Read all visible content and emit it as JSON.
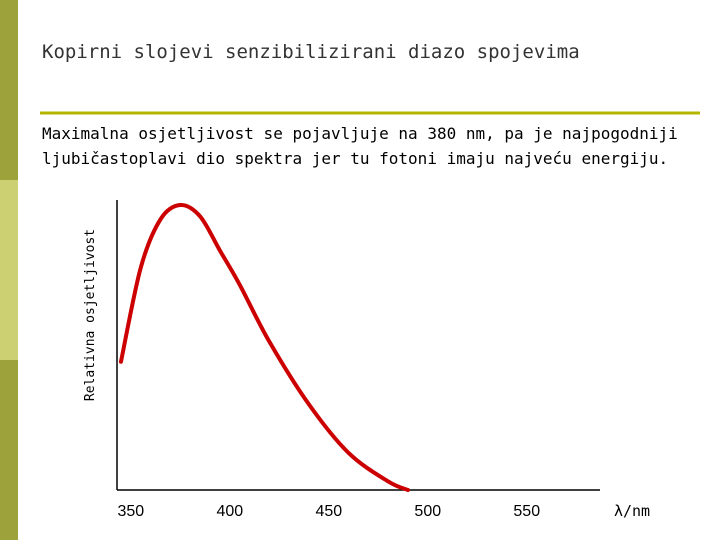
{
  "chart_data": {
    "type": "line",
    "title": "Kopirni slojevi senzibilizirani diazo spojevima",
    "description": [
      "Maximalna osjetljivost se pojavljuje na 380 nm, pa je najpogodniji",
      "ljubičastoplavi dio spektra jer tu fotoni imaju najveću energiju."
    ],
    "x_label": "λ/nm",
    "y_label": "Relativna osjetljivost",
    "x": [
      345,
      355,
      365,
      375,
      385,
      395,
      405,
      420,
      440,
      460,
      480,
      490
    ],
    "series": [
      {
        "color": "#cc0000",
        "values": [
          45,
          78,
          95,
          100,
          96,
          84,
          72,
          52,
          30,
          13,
          3,
          0
        ]
      }
    ],
    "xlim": [
      343,
      587
    ],
    "ylim": [
      0,
      100
    ],
    "xticks": [
      350,
      400,
      450,
      500,
      550
    ]
  }
}
